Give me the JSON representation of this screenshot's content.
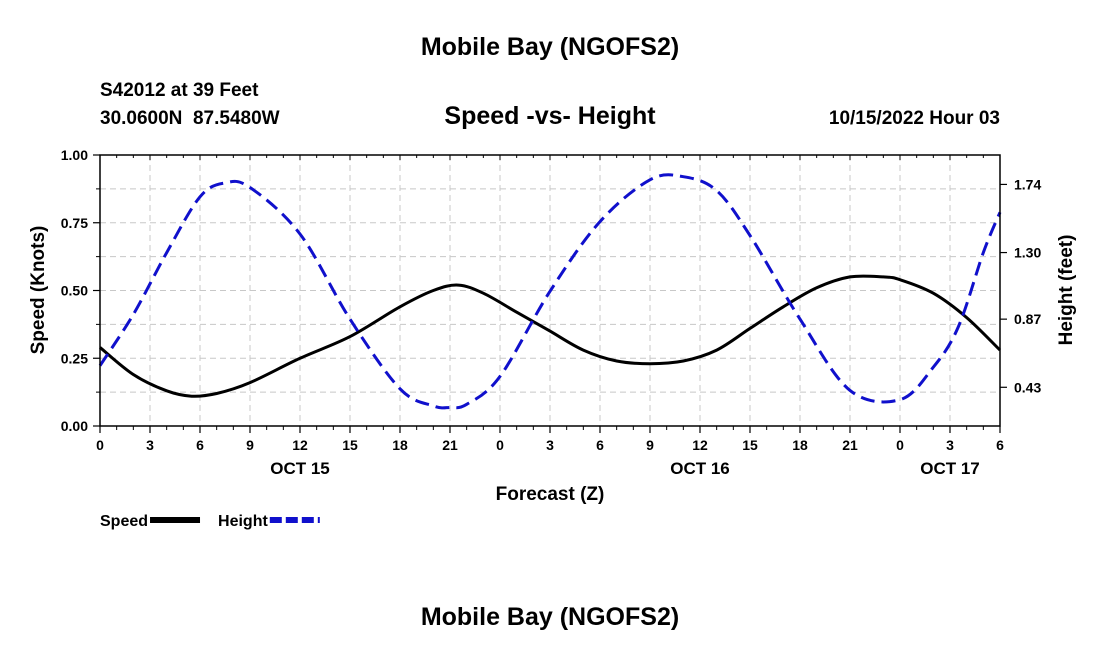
{
  "chart_data": {
    "type": "line",
    "title": "Mobile Bay (NGOFS2)",
    "subtitle": "Speed -vs- Height",
    "station_line": "S42012 at 39 Feet",
    "coords_line": "30.0600N  87.5480W",
    "date_line": "10/15/2022 Hour 03",
    "footer_title": "Mobile Bay (NGOFS2)",
    "xlabel": "Forecast (Z)",
    "ylabel_left": "Speed (Knots)",
    "ylabel_right": "Height (feet)",
    "x_hours": [
      0,
      3,
      6,
      9,
      12,
      15,
      18,
      21,
      24,
      27,
      30,
      33,
      36,
      39,
      42,
      45,
      48,
      51,
      54
    ],
    "x_tick_labels": [
      "0",
      "3",
      "6",
      "9",
      "12",
      "15",
      "18",
      "21",
      "0",
      "3",
      "6",
      "9",
      "12",
      "15",
      "18",
      "21",
      "0",
      "3",
      "6"
    ],
    "date_labels": [
      {
        "label": "OCT 15",
        "hour": 12
      },
      {
        "label": "OCT 16",
        "hour": 36
      },
      {
        "label": "OCT 17",
        "hour": 51
      }
    ],
    "xlim": [
      0,
      54
    ],
    "y_left": {
      "lim": [
        0,
        1
      ],
      "ticks": [
        0,
        0.25,
        0.5,
        0.75,
        1.0
      ],
      "tick_labels": [
        "0.00",
        "0.25",
        "0.50",
        "0.75",
        "1.00"
      ]
    },
    "y_right": {
      "lim": [
        0.18,
        1.93
      ],
      "ticks": [
        0.43,
        0.87,
        1.3,
        1.74
      ],
      "tick_labels": [
        "0.43",
        "0.87",
        "1.30",
        "1.74"
      ]
    },
    "series": [
      {
        "name": "Speed",
        "axis": "left",
        "color": "#000000",
        "dashed": false,
        "x": [
          0,
          2,
          4,
          5.5,
          7,
          9,
          12,
          15,
          18,
          20,
          21.5,
          23,
          25,
          27,
          29,
          31,
          33,
          35,
          37,
          39,
          41,
          43,
          45,
          47,
          48,
          50,
          52,
          54
        ],
        "y": [
          0.29,
          0.19,
          0.13,
          0.11,
          0.12,
          0.16,
          0.25,
          0.33,
          0.44,
          0.5,
          0.52,
          0.49,
          0.42,
          0.35,
          0.28,
          0.24,
          0.23,
          0.24,
          0.28,
          0.36,
          0.44,
          0.51,
          0.55,
          0.55,
          0.54,
          0.49,
          0.4,
          0.28
        ]
      },
      {
        "name": "Height",
        "axis": "right",
        "color": "#1010cc",
        "dashed": true,
        "x": [
          0,
          2,
          4,
          6,
          7.5,
          9,
          12,
          15,
          18,
          20,
          21,
          22,
          24,
          27,
          30,
          33,
          35,
          37,
          39,
          42,
          45,
          48,
          50,
          51.5,
          53,
          54
        ],
        "y": [
          0.57,
          0.9,
          1.3,
          1.66,
          1.75,
          1.72,
          1.42,
          0.87,
          0.42,
          0.31,
          0.3,
          0.32,
          0.5,
          1.05,
          1.5,
          1.77,
          1.79,
          1.7,
          1.41,
          0.87,
          0.41,
          0.35,
          0.56,
          0.82,
          1.3,
          1.56
        ]
      }
    ],
    "legend": [
      {
        "label": "Speed",
        "color": "#000000",
        "dashed": false
      },
      {
        "label": "Height",
        "color": "#1010cc",
        "dashed": true
      }
    ]
  }
}
